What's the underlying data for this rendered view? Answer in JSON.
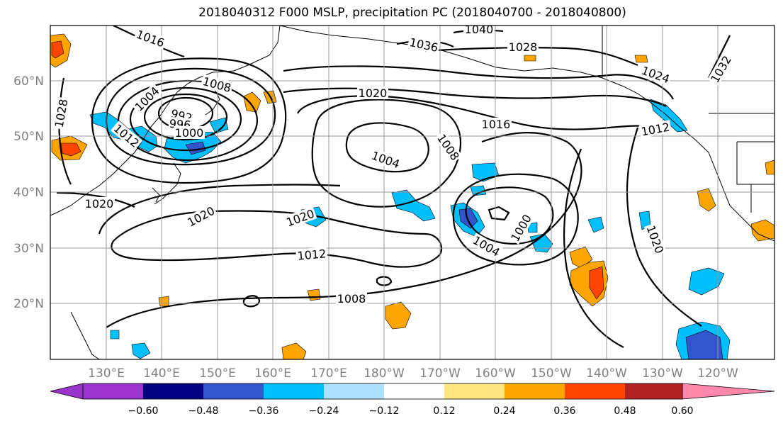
{
  "title": "2018040312 F000 MSLP, precipitation PC (2018040700 - 2018040800)",
  "map": {
    "lat_labels": [
      "60°N",
      "50°N",
      "40°N",
      "30°N",
      "20°N"
    ],
    "lon_labels": [
      "130°E",
      "140°E",
      "150°E",
      "160°E",
      "170°E",
      "180°W",
      "170°W",
      "160°W",
      "150°W",
      "140°W",
      "130°W",
      "120°W"
    ],
    "isobar_labels": [
      {
        "text": "1016"
      },
      {
        "text": "1036"
      },
      {
        "text": "1040"
      },
      {
        "text": "1028"
      },
      {
        "text": "1028"
      },
      {
        "text": "1024"
      },
      {
        "text": "1032"
      },
      {
        "text": "1008"
      },
      {
        "text": "1020"
      },
      {
        "text": "1004"
      },
      {
        "text": "992"
      },
      {
        "text": "996"
      },
      {
        "text": "1000"
      },
      {
        "text": "1012"
      },
      {
        "text": "1016"
      },
      {
        "text": "1012"
      },
      {
        "text": "1008"
      },
      {
        "text": "1004"
      },
      {
        "text": "1020"
      },
      {
        "text": "1020"
      },
      {
        "text": "1020"
      },
      {
        "text": "1000"
      },
      {
        "text": "1004"
      },
      {
        "text": "1012"
      },
      {
        "text": "1008"
      },
      {
        "text": "1020"
      }
    ]
  },
  "colorbar": {
    "colors": [
      "#9933cc",
      "#000080",
      "#3355cc",
      "#00bfff",
      "#b0e0ff",
      "#ffffff",
      "#ffe680",
      "#ffa500",
      "#ff4500",
      "#b22222",
      "#ff88aa"
    ],
    "ticks": [
      "−0.60",
      "−0.48",
      "−0.36",
      "−0.24",
      "−0.12",
      "0.12",
      "0.24",
      "0.36",
      "0.48",
      "0.60"
    ]
  }
}
